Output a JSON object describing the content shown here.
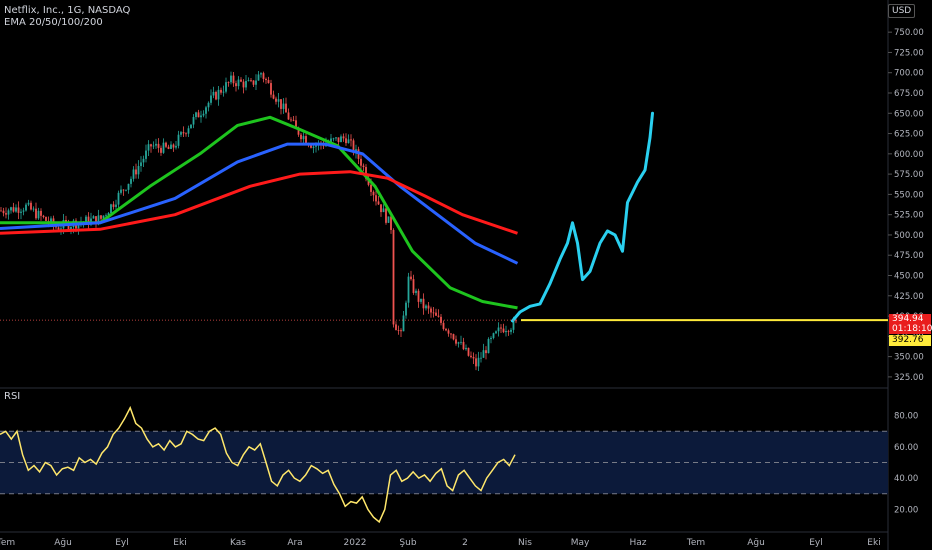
{
  "header": {
    "symbol_line": "Netflix, Inc., 1G, NASDAQ",
    "indicator_line": "EMA 20/50/100/200"
  },
  "rsi_label": "RSI",
  "currency": "USD",
  "price_tags": {
    "last": "394.94",
    "countdown": "01:18:10",
    "ema": "392.76"
  },
  "colors": {
    "up": "#26a69a",
    "down": "#ef5350",
    "ema_fast": "#1ec41e",
    "ema_mid": "#2962ff",
    "ema_slow": "#ff1a1a",
    "projection": "#2ad0f0",
    "last_line": "#ffeb3b",
    "rsi": "#ffe76b",
    "rsi_band": "#0c1a3a"
  },
  "chart_data": [
    {
      "type": "candlestick",
      "title": "Netflix, Inc., 1G, NASDAQ",
      "y_axis": {
        "position": "right",
        "ticks": [
          325,
          350,
          375,
          400,
          425,
          450,
          475,
          500,
          525,
          550,
          575,
          600,
          625,
          650,
          675,
          700,
          725,
          750
        ],
        "range": [
          315,
          765
        ]
      },
      "x_axis": {
        "ticks": [
          "Tem",
          "Ağu",
          "Eyl",
          "Eki",
          "Kas",
          "Ara",
          "2022",
          "Şub",
          "2",
          "Nis",
          "May",
          "Haz",
          "Tem",
          "Ağu",
          "Eyl",
          "Eki"
        ]
      },
      "price_path": [
        {
          "i": 0,
          "v": 530
        },
        {
          "i": 10,
          "v": 535
        },
        {
          "i": 17,
          "v": 520
        },
        {
          "i": 22,
          "v": 510
        },
        {
          "i": 30,
          "v": 515
        },
        {
          "i": 40,
          "v": 520
        },
        {
          "i": 45,
          "v": 540
        },
        {
          "i": 52,
          "v": 570
        },
        {
          "i": 60,
          "v": 610
        },
        {
          "i": 68,
          "v": 605
        },
        {
          "i": 75,
          "v": 635
        },
        {
          "i": 85,
          "v": 670
        },
        {
          "i": 92,
          "v": 690
        },
        {
          "i": 100,
          "v": 685
        },
        {
          "i": 104,
          "v": 700
        },
        {
          "i": 110,
          "v": 670
        },
        {
          "i": 118,
          "v": 630
        },
        {
          "i": 125,
          "v": 610
        },
        {
          "i": 132,
          "v": 615
        },
        {
          "i": 138,
          "v": 620
        },
        {
          "i": 144,
          "v": 590
        },
        {
          "i": 150,
          "v": 545
        },
        {
          "i": 156,
          "v": 510
        },
        {
          "i": 157,
          "v": 395
        },
        {
          "i": 160,
          "v": 375
        },
        {
          "i": 163,
          "v": 445
        },
        {
          "i": 168,
          "v": 415
        },
        {
          "i": 175,
          "v": 395
        },
        {
          "i": 180,
          "v": 380
        },
        {
          "i": 186,
          "v": 355
        },
        {
          "i": 190,
          "v": 340
        },
        {
          "i": 195,
          "v": 365
        },
        {
          "i": 200,
          "v": 385
        },
        {
          "i": 206,
          "v": 390
        }
      ],
      "ema_series": [
        {
          "name": "EMA 20",
          "points": [
            [
              0,
              515
            ],
            [
              40,
              515
            ],
            [
              60,
              560
            ],
            [
              80,
              600
            ],
            [
              95,
              635
            ],
            [
              108,
              645
            ],
            [
              120,
              630
            ],
            [
              135,
              610
            ],
            [
              150,
              560
            ],
            [
              165,
              480
            ],
            [
              180,
              435
            ],
            [
              193,
              418
            ],
            [
              207,
              410
            ]
          ]
        },
        {
          "name": "EMA 50",
          "points": [
            [
              0,
              508
            ],
            [
              40,
              515
            ],
            [
              70,
              545
            ],
            [
              95,
              590
            ],
            [
              115,
              612
            ],
            [
              130,
              612
            ],
            [
              145,
              600
            ],
            [
              160,
              560
            ],
            [
              175,
              525
            ],
            [
              190,
              490
            ],
            [
              207,
              465
            ]
          ]
        },
        {
          "name": "EMA 100",
          "points": [
            [
              0,
              502
            ],
            [
              40,
              507
            ],
            [
              70,
              525
            ],
            [
              100,
              560
            ],
            [
              120,
              575
            ],
            [
              140,
              578
            ],
            [
              155,
              570
            ],
            [
              170,
              548
            ],
            [
              185,
              525
            ],
            [
              207,
              502
            ]
          ]
        }
      ],
      "projection": [
        {
          "i": 205,
          "v": 394
        },
        {
          "i": 208,
          "v": 405
        },
        {
          "i": 212,
          "v": 412
        },
        {
          "i": 216,
          "v": 415
        },
        {
          "i": 220,
          "v": 440
        },
        {
          "i": 224,
          "v": 470
        },
        {
          "i": 227,
          "v": 490
        },
        {
          "i": 229,
          "v": 515
        },
        {
          "i": 231,
          "v": 490
        },
        {
          "i": 233,
          "v": 445
        },
        {
          "i": 236,
          "v": 455
        },
        {
          "i": 240,
          "v": 490
        },
        {
          "i": 243,
          "v": 505
        },
        {
          "i": 246,
          "v": 500
        },
        {
          "i": 249,
          "v": 480
        },
        {
          "i": 251,
          "v": 540
        },
        {
          "i": 255,
          "v": 565
        },
        {
          "i": 258,
          "v": 580
        },
        {
          "i": 260,
          "v": 620
        },
        {
          "i": 261,
          "v": 650
        }
      ],
      "last_price": 394.94
    },
    {
      "type": "line",
      "title": "RSI",
      "y_axis": {
        "position": "right",
        "ticks": [
          20,
          40,
          60,
          80
        ],
        "range": [
          10,
          90
        ]
      },
      "bands": [
        30,
        50,
        70
      ],
      "values": [
        68,
        70,
        65,
        70,
        55,
        45,
        48,
        44,
        50,
        48,
        42,
        46,
        47,
        45,
        53,
        50,
        52,
        49,
        56,
        60,
        68,
        72,
        78,
        85,
        75,
        72,
        65,
        60,
        62,
        58,
        64,
        60,
        62,
        70,
        68,
        65,
        64,
        70,
        72,
        68,
        56,
        50,
        48,
        55,
        60,
        58,
        62,
        50,
        38,
        35,
        42,
        45,
        40,
        38,
        42,
        48,
        46,
        43,
        45,
        36,
        30,
        22,
        25,
        24,
        28,
        20,
        15,
        12,
        20,
        42,
        45,
        38,
        40,
        44,
        40,
        42,
        38,
        43,
        46,
        35,
        32,
        42,
        45,
        40,
        35,
        32,
        40,
        45,
        50,
        52,
        48,
        55
      ]
    }
  ]
}
